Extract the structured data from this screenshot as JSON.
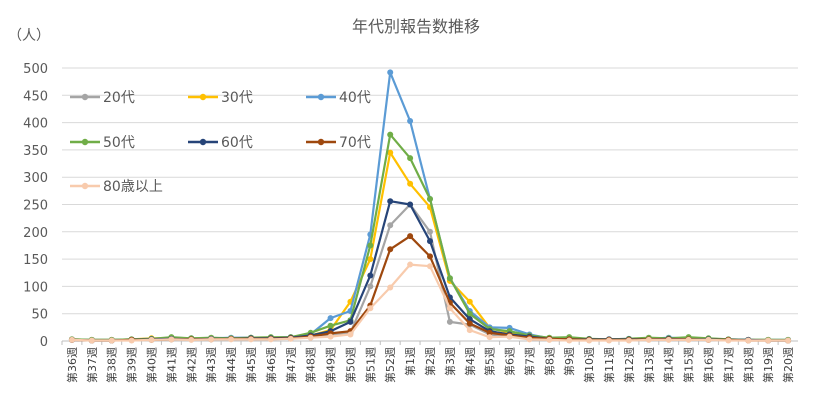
{
  "chart_data": {
    "type": "line",
    "title": "年代別報告数推移",
    "ylabel": "（人）",
    "ylim": [
      0,
      500
    ],
    "yticks": [
      0,
      50,
      100,
      150,
      200,
      250,
      300,
      350,
      400,
      450,
      500
    ],
    "grid": true,
    "legend_position": "top-left inside plot",
    "categories": [
      "第36週",
      "第37週",
      "第38週",
      "第39週",
      "第40週",
      "第41週",
      "第42週",
      "第43週",
      "第44週",
      "第45週",
      "第46週",
      "第47週",
      "第48週",
      "第49週",
      "第50週",
      "第51週",
      "第52週",
      "第1週",
      "第2週",
      "第3週",
      "第4週",
      "第5週",
      "第6週",
      "第7週",
      "第8週",
      "第9週",
      "第10週",
      "第11週",
      "第12週",
      "第13週",
      "第14週",
      "第15週",
      "第16週",
      "第17週",
      "第18週",
      "第19週",
      "第20週"
    ],
    "series": [
      {
        "name": "20代",
        "color": "#A5A5A5",
        "values": [
          2,
          1,
          1,
          2,
          3,
          4,
          3,
          4,
          4,
          5,
          5,
          5,
          8,
          12,
          15,
          100,
          212,
          250,
          200,
          35,
          30,
          12,
          8,
          5,
          3,
          2,
          2,
          2,
          2,
          3,
          3,
          3,
          2,
          2,
          2,
          1,
          1
        ]
      },
      {
        "name": "30代",
        "color": "#FFC000",
        "values": [
          3,
          2,
          2,
          3,
          5,
          5,
          4,
          5,
          5,
          6,
          6,
          6,
          10,
          20,
          72,
          150,
          345,
          288,
          245,
          110,
          72,
          24,
          15,
          8,
          5,
          3,
          2,
          3,
          3,
          4,
          4,
          3,
          3,
          2,
          2,
          2,
          1
        ]
      },
      {
        "name": "40代",
        "color": "#5B9BD5",
        "values": [
          3,
          2,
          2,
          3,
          4,
          6,
          5,
          5,
          6,
          6,
          6,
          7,
          12,
          42,
          55,
          195,
          492,
          403,
          260,
          115,
          55,
          25,
          24,
          12,
          5,
          4,
          3,
          3,
          4,
          4,
          6,
          5,
          4,
          3,
          2,
          2,
          2
        ]
      },
      {
        "name": "50代",
        "color": "#70AD47",
        "values": [
          3,
          2,
          2,
          3,
          4,
          7,
          5,
          6,
          5,
          6,
          7,
          7,
          15,
          28,
          38,
          175,
          378,
          335,
          260,
          115,
          50,
          22,
          18,
          10,
          6,
          7,
          4,
          3,
          4,
          6,
          5,
          7,
          5,
          3,
          2,
          2,
          2
        ]
      },
      {
        "name": "60代",
        "color": "#264478",
        "values": [
          2,
          1,
          1,
          2,
          3,
          4,
          3,
          4,
          4,
          5,
          5,
          6,
          10,
          18,
          35,
          120,
          256,
          250,
          183,
          80,
          40,
          18,
          12,
          8,
          4,
          3,
          3,
          3,
          3,
          3,
          4,
          3,
          3,
          2,
          2,
          1,
          1
        ]
      },
      {
        "name": "70代",
        "color": "#9E480E",
        "values": [
          2,
          1,
          1,
          2,
          2,
          3,
          3,
          3,
          4,
          4,
          4,
          5,
          8,
          14,
          18,
          65,
          168,
          192,
          155,
          70,
          32,
          15,
          10,
          6,
          4,
          3,
          2,
          2,
          2,
          3,
          3,
          3,
          2,
          2,
          1,
          1,
          1
        ]
      },
      {
        "name": "80歳以上",
        "color": "#F8CBAD",
        "values": [
          2,
          1,
          1,
          1,
          2,
          3,
          2,
          3,
          3,
          3,
          3,
          4,
          6,
          8,
          12,
          60,
          98,
          140,
          137,
          60,
          20,
          7,
          8,
          3,
          2,
          1,
          1,
          1,
          1,
          2,
          2,
          2,
          2,
          1,
          1,
          1,
          1
        ]
      }
    ]
  }
}
